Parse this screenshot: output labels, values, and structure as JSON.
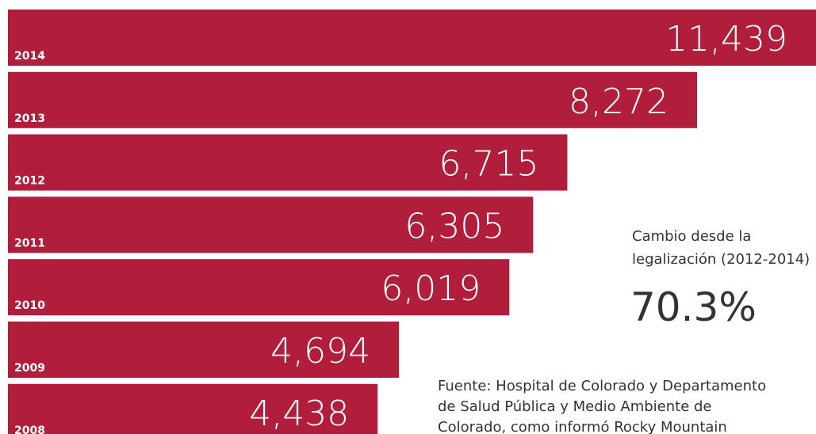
{
  "chart_data": {
    "type": "bar",
    "orientation": "horizontal",
    "categories": [
      "2014",
      "2013",
      "2012",
      "2011",
      "2010",
      "2009",
      "2008"
    ],
    "values": [
      11439,
      8272,
      6715,
      6305,
      6019,
      4694,
      4438
    ],
    "value_labels": [
      "11,439",
      "8,272",
      "6,715",
      "6,305",
      "6,019",
      "4,694",
      "4,438"
    ],
    "color": "#b01e3c",
    "xlim": [
      0,
      9700
    ],
    "callout": {
      "lines": [
        "Cambio desde la",
        "legalización (2012-2014)"
      ],
      "stat": "70.3%"
    },
    "source": [
      "Fuente: Hospital de Colorado y Departamento",
      "de Salud Pública y Medio Ambiente de",
      "Colorado, como informó Rocky Mountain"
    ]
  }
}
